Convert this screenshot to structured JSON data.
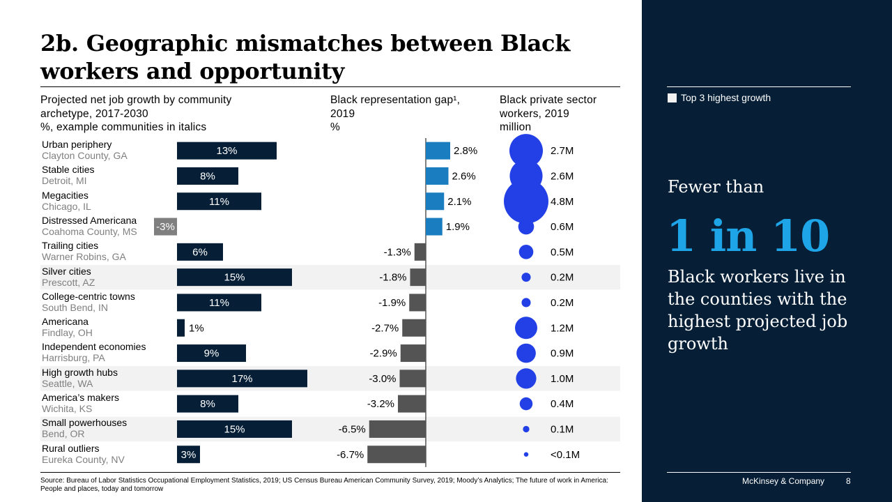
{
  "title": "2b. Geographic mismatches between Black workers and opportunity",
  "columns": {
    "growth": {
      "line1": "Projected net job growth by community",
      "line2": "archetype, 2017-2030",
      "line3": "%, example communities in italics"
    },
    "gap": {
      "line1": "Black representation gap¹,",
      "line2": "2019",
      "line3": "%"
    },
    "workers": {
      "line1": "Black private sector",
      "line2": "workers, 2019",
      "line3": "million"
    }
  },
  "colors": {
    "growth_bar": "#061f36",
    "negative_bar": "#7f7f7f",
    "gap_positive": "#1a7dc0",
    "gap_negative": "#545454",
    "bubble": "#2340e6",
    "highlight_row": "#f2f2f2",
    "panel_bg": "#061f36",
    "accent": "#1ea5e8"
  },
  "chart_data": {
    "type": "bar",
    "title": "2b. Geographic mismatches between Black workers and opportunity",
    "categories": [
      "Urban periphery",
      "Stable cities",
      "Megacities",
      "Distressed Americana",
      "Trailing cities",
      "Silver cities",
      "College-centric towns",
      "Americana",
      "Independent economies",
      "High growth hubs",
      "America’s makers",
      "Small powerhouses",
      "Rural outliers"
    ],
    "examples": [
      "Clayton County, GA",
      "Detroit, MI",
      "Chicago, IL",
      "Coahoma County, MS",
      "Warner Robins, GA",
      "Prescott, AZ",
      "South Bend, IN",
      "Findlay, OH",
      "Harrisburg, PA",
      "Seattle, WA",
      "Wichita, KS",
      "Bend, OR",
      "Eureka County, NV"
    ],
    "highlighted": [
      false,
      false,
      false,
      false,
      false,
      true,
      false,
      false,
      false,
      true,
      false,
      true,
      false
    ],
    "series": [
      {
        "name": "Projected net job growth by community archetype, 2017-2030",
        "unit": "%",
        "values": [
          13,
          8,
          11,
          -3,
          6,
          15,
          11,
          1,
          9,
          17,
          8,
          15,
          3
        ],
        "labels": [
          "13%",
          "8%",
          "11%",
          "-3%",
          "6%",
          "15%",
          "11%",
          "1%",
          "9%",
          "17%",
          "8%",
          "15%",
          "3%"
        ]
      },
      {
        "name": "Black representation gap¹, 2019",
        "unit": "%",
        "values": [
          2.8,
          2.6,
          2.1,
          1.9,
          -1.3,
          -1.8,
          -1.9,
          -2.7,
          -2.9,
          -3.0,
          -3.2,
          -6.5,
          -6.7
        ],
        "labels": [
          "2.8%",
          "2.6%",
          "2.1%",
          "1.9%",
          "-1.3%",
          "-1.8%",
          "-1.9%",
          "-2.7%",
          "-2.9%",
          "-3.0%",
          "-3.2%",
          "-6.5%",
          "-6.7%"
        ]
      },
      {
        "name": "Black private sector workers, 2019",
        "unit": "million",
        "type": "bubble",
        "values": [
          2.7,
          2.6,
          4.8,
          0.6,
          0.5,
          0.2,
          0.2,
          1.2,
          0.9,
          1.0,
          0.4,
          0.1,
          0.05
        ],
        "labels": [
          "2.7M",
          "2.6M",
          "4.8M",
          "0.6M",
          "0.5M",
          "0.2M",
          "0.2M",
          "1.2M",
          "0.9M",
          "1.0M",
          "0.4M",
          "0.1M",
          "<0.1M"
        ]
      }
    ],
    "legend": [
      "Top 3 highest growth"
    ],
    "legend_position": "top-right",
    "grid": false
  },
  "source": "Source: Bureau of Labor Statistics Occupational Employment Statistics, 2019; US Census Bureau American Community Survey, 2019; Moody’s Analytics; The future of work in America: People and places, today and tomorrow",
  "panel": {
    "legend_label": "Top 3 highest growth",
    "fewer_than": "Fewer than",
    "big_number": "1 in 10",
    "callout": "Black workers live in the counties with the highest projected job growth",
    "brand": "McKinsey & Company",
    "page_number": "8"
  }
}
